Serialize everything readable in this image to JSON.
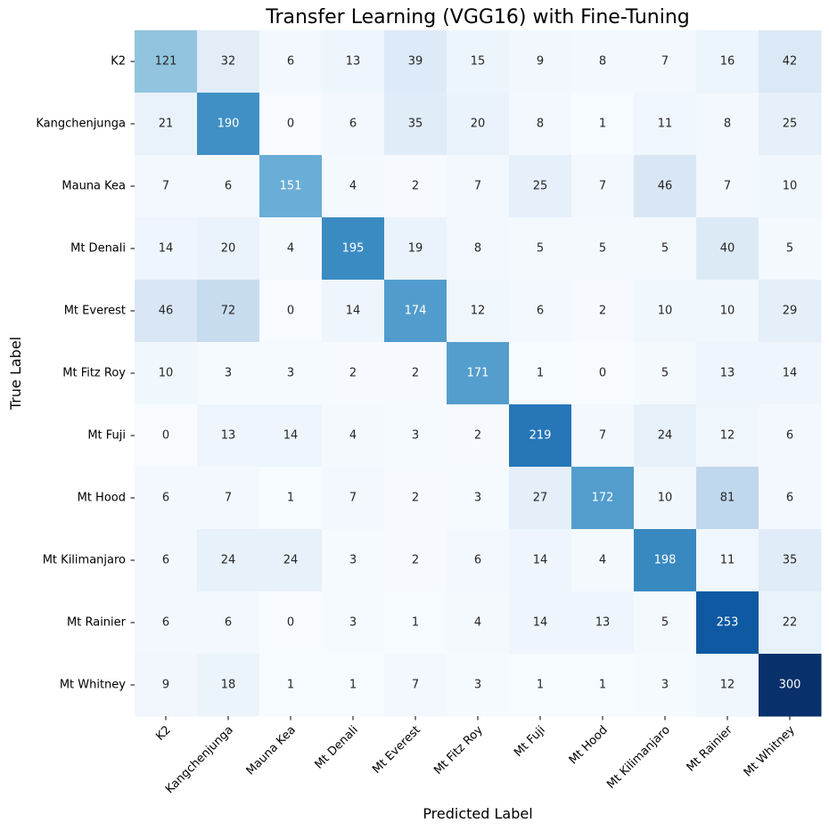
{
  "chart_data": {
    "type": "heatmap",
    "title": "Transfer Learning (VGG16) with Fine-Tuning",
    "xlabel": "Predicted Label",
    "ylabel": "True Label",
    "x_categories": [
      "K2",
      "Kangchenjunga",
      "Mauna Kea",
      "Mt Denali",
      "Mt Everest",
      "Mt Fitz Roy",
      "Mt Fuji",
      "Mt Hood",
      "Mt Kilimanjaro",
      "Mt Rainier",
      "Mt Whitney"
    ],
    "y_categories": [
      "K2",
      "Kangchenjunga",
      "Mauna Kea",
      "Mt Denali",
      "Mt Everest",
      "Mt Fitz Roy",
      "Mt Fuji",
      "Mt Hood",
      "Mt Kilimanjaro",
      "Mt Rainier",
      "Mt Whitney"
    ],
    "matrix": [
      [
        121,
        32,
        6,
        13,
        39,
        15,
        9,
        8,
        7,
        16,
        42
      ],
      [
        21,
        190,
        0,
        6,
        35,
        20,
        8,
        1,
        11,
        8,
        25
      ],
      [
        7,
        6,
        151,
        4,
        2,
        7,
        25,
        7,
        46,
        7,
        10
      ],
      [
        14,
        20,
        4,
        195,
        19,
        8,
        5,
        5,
        5,
        40,
        5
      ],
      [
        46,
        72,
        0,
        14,
        174,
        12,
        6,
        2,
        10,
        10,
        29
      ],
      [
        10,
        3,
        3,
        2,
        2,
        171,
        1,
        0,
        5,
        13,
        14
      ],
      [
        0,
        13,
        14,
        4,
        3,
        2,
        219,
        7,
        24,
        12,
        6
      ],
      [
        6,
        7,
        1,
        7,
        2,
        3,
        27,
        172,
        10,
        81,
        6
      ],
      [
        6,
        24,
        24,
        3,
        2,
        6,
        14,
        4,
        198,
        11,
        35
      ],
      [
        6,
        6,
        0,
        3,
        1,
        4,
        14,
        13,
        5,
        253,
        22
      ],
      [
        9,
        18,
        1,
        1,
        7,
        3,
        1,
        1,
        3,
        12,
        300
      ]
    ],
    "colormap": "Blues",
    "colorbar": false,
    "annotations": true,
    "grid": false
  }
}
